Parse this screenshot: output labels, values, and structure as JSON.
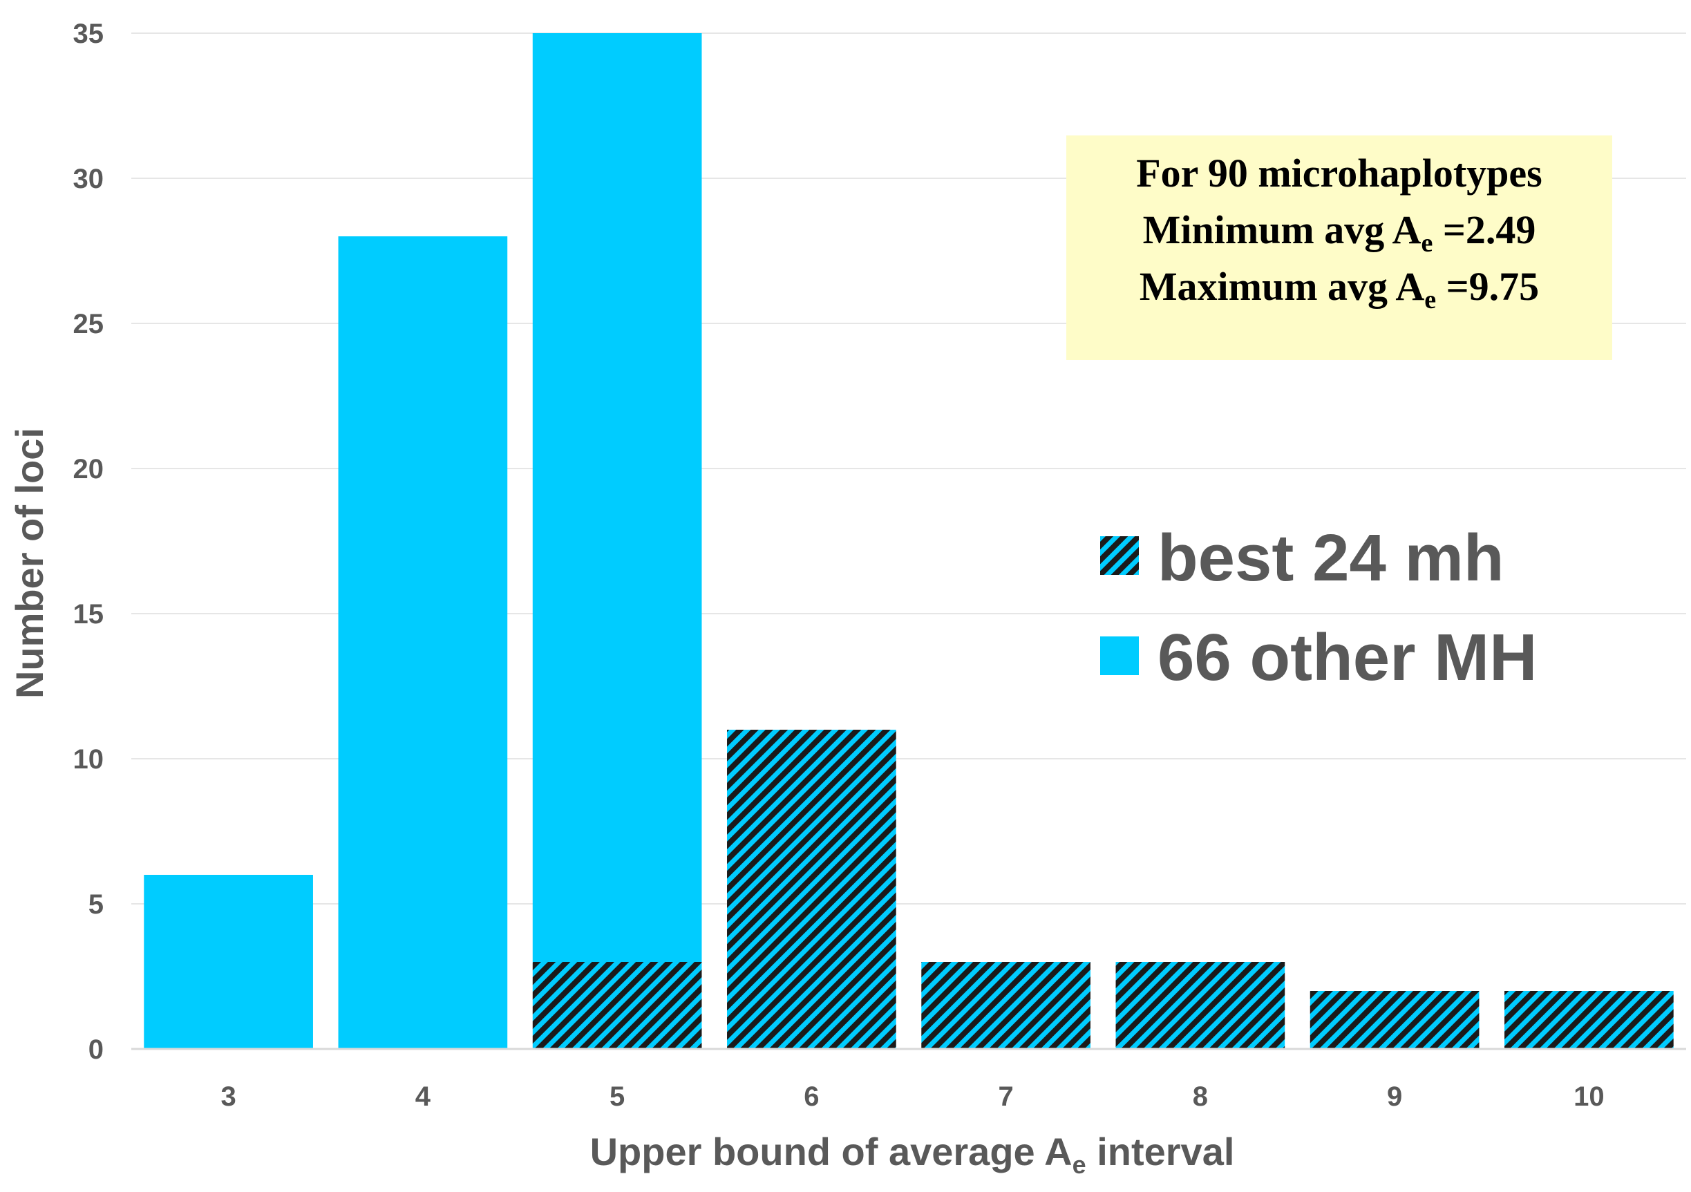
{
  "chart_data": {
    "type": "bar",
    "stacked": true,
    "categories": [
      "3",
      "4",
      "5",
      "6",
      "7",
      "8",
      "9",
      "10"
    ],
    "series": [
      {
        "name": "best 24 mh",
        "pattern": "hatched",
        "color": "#00ccff",
        "hatch_color": "#1a1a1a",
        "values": [
          0,
          0,
          3,
          11,
          3,
          3,
          2,
          2
        ]
      },
      {
        "name": "66 other MH",
        "pattern": "solid",
        "color": "#00ccff",
        "values": [
          6,
          28,
          32,
          0,
          0,
          0,
          0,
          0
        ]
      }
    ],
    "xlabel": {
      "prefix": "Upper bound of average A",
      "subscript": "e",
      "suffix": " interval"
    },
    "ylabel": "Number of  loci",
    "ylim": [
      0,
      35
    ],
    "yticks": [
      "0",
      "5",
      "10",
      "15",
      "20",
      "25",
      "30",
      "35"
    ],
    "grid": "horizontal",
    "legend_position": "right",
    "annotation": {
      "line1": "For 90 microhaplotypes",
      "line2": {
        "prefix": "Minimum avg A",
        "subscript": "e",
        "suffix": " =2.49"
      },
      "line3": {
        "prefix": "Maximum avg A",
        "subscript": "e",
        "suffix": " =9.75"
      },
      "background": "#fefcc8"
    }
  }
}
